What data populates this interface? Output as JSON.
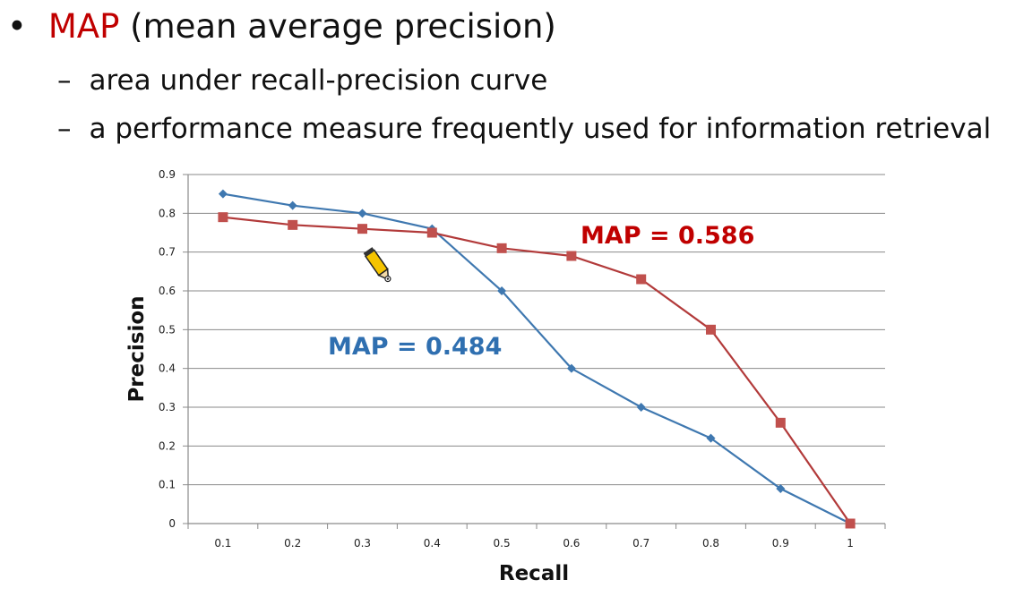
{
  "slide": {
    "bullet": "•",
    "title_accent": "MAP",
    "title_rest": " (mean average precision)",
    "dash": "–",
    "sub1": "area under recall-precision curve",
    "sub2": "a performance measure frequently used for information retrieval"
  },
  "colors": {
    "accent": "#c00000",
    "blue": "#3f78b0",
    "red": "#b23a3a",
    "blue_marker": "#3f78b0",
    "red_marker": "#c0504d"
  },
  "chart_data": {
    "type": "line",
    "xlabel": "Recall",
    "ylabel": "Precision",
    "x": [
      0.1,
      0.2,
      0.3,
      0.4,
      0.5,
      0.6,
      0.7,
      0.8,
      0.9,
      1
    ],
    "x_tick_labels": [
      "0.1",
      "0.2",
      "0.3",
      "0.4",
      "0.5",
      "0.6",
      "0.7",
      "0.8",
      "0.9",
      "1"
    ],
    "y_ticks": [
      0,
      0.1,
      0.2,
      0.3,
      0.4,
      0.5,
      0.6,
      0.7,
      0.8,
      0.9
    ],
    "y_tick_labels": [
      "0",
      "0.1",
      "0.2",
      "0.3",
      "0.4",
      "0.5",
      "0.6",
      "0.7",
      "0.8",
      "0.9"
    ],
    "ylim": [
      0,
      0.9
    ],
    "grid": true,
    "series": [
      {
        "marker": "diamond",
        "values": [
          0.85,
          0.82,
          0.8,
          0.76,
          0.6,
          0.4,
          0.3,
          0.22,
          0.09,
          0
        ]
      },
      {
        "marker": "square",
        "values": [
          0.79,
          0.77,
          0.76,
          0.75,
          0.71,
          0.69,
          0.63,
          0.5,
          0.26,
          0
        ]
      }
    ],
    "annotations": [
      {
        "text": "MAP = 0.586",
        "series": 1
      },
      {
        "text": "MAP = 0.484",
        "series": 0
      }
    ]
  },
  "cursor": {
    "icon": "pencil-cursor-icon"
  }
}
